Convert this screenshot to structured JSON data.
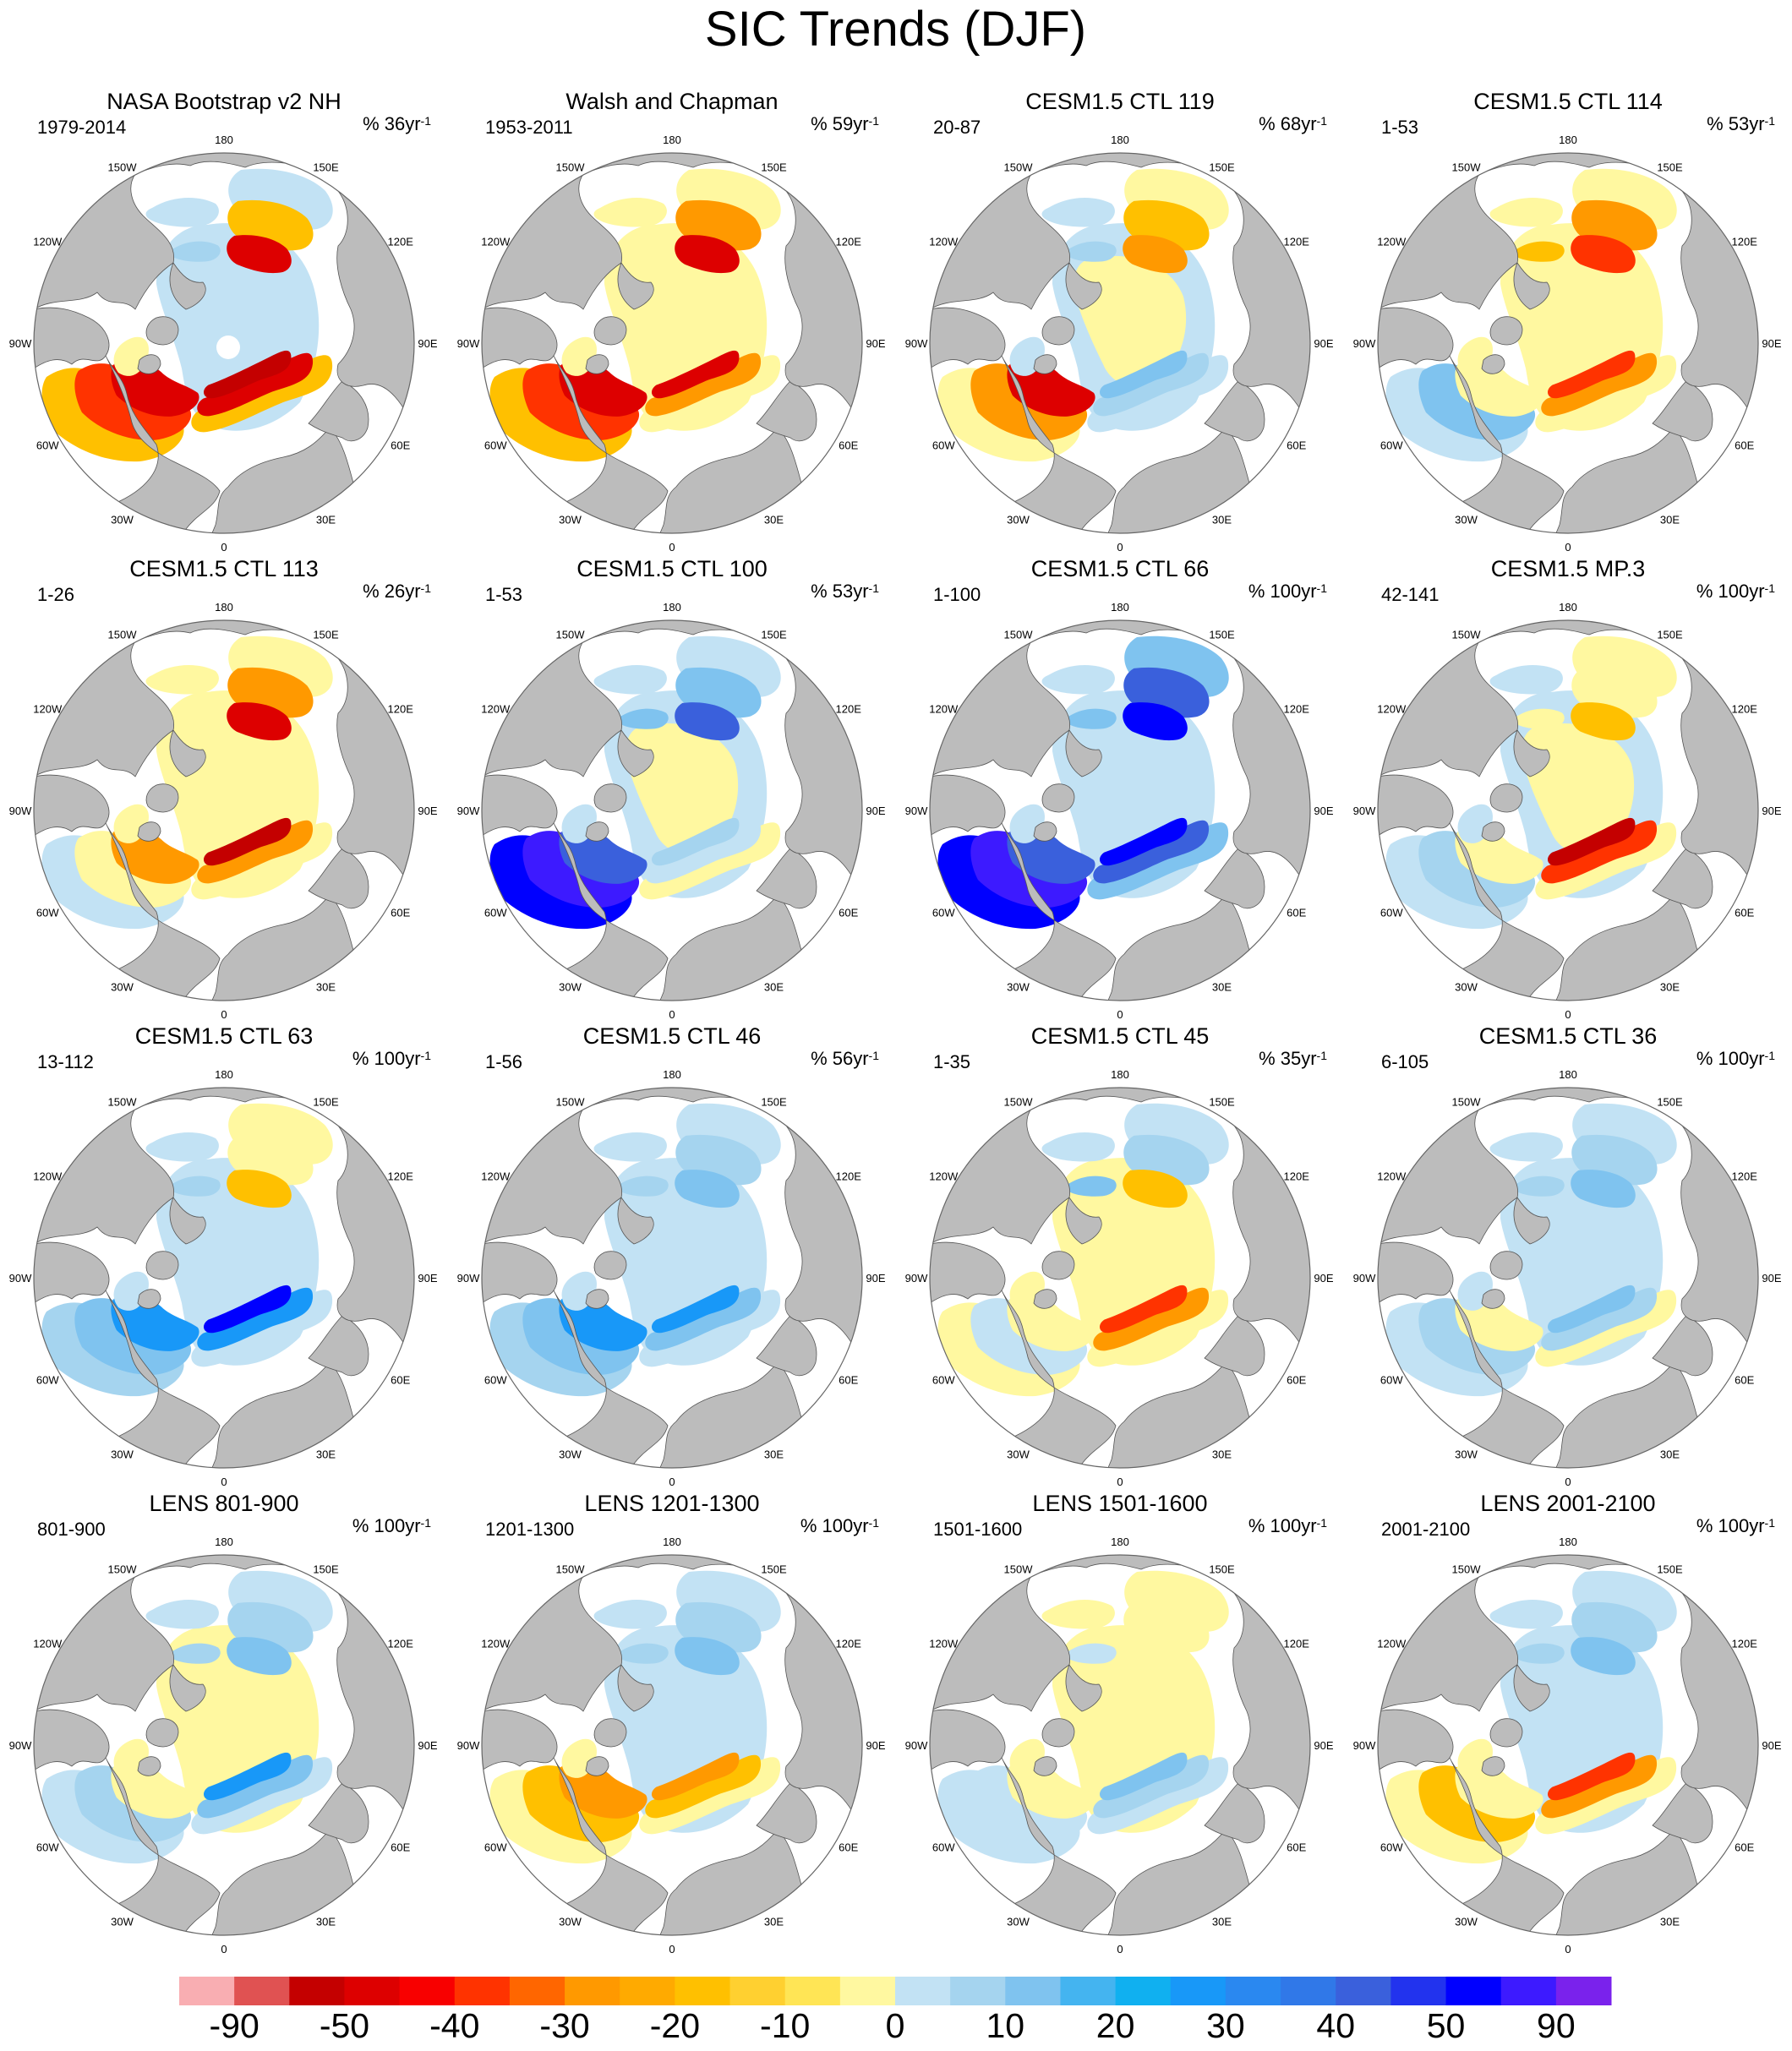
{
  "title": "SIC Trends (DJF)",
  "map_labels": {
    "longitudes": [
      "180",
      "150E",
      "120E",
      "90E",
      "60E",
      "30E",
      "0",
      "30W",
      "60W",
      "90W",
      "120W",
      "150W"
    ]
  },
  "colors": {
    "land": "#bcbcbc",
    "ocean": "#ffffff",
    "outline": "#555555"
  },
  "panels": [
    {
      "title": "NASA Bootstrap v2 NH",
      "period": "1979-2014",
      "units": "% 36yr",
      "units_exp": "-1",
      "pattern": "obs1"
    },
    {
      "title": "Walsh and Chapman",
      "period": "1953-2011",
      "units": "% 59yr",
      "units_exp": "-1",
      "pattern": "obs2"
    },
    {
      "title": "CESM1.5 CTL 119",
      "period": "20-87",
      "units": "% 68yr",
      "units_exp": "-1",
      "pattern": "mixw"
    },
    {
      "title": "CESM1.5 CTL 114",
      "period": "1-53",
      "units": "% 53yr",
      "units_exp": "-1",
      "pattern": "warm"
    },
    {
      "title": "CESM1.5 CTL 113",
      "period": "1-26",
      "units": "% 26yr",
      "units_exp": "-1",
      "pattern": "warm2"
    },
    {
      "title": "CESM1.5 CTL 100",
      "period": "1-53",
      "units": "% 53yr",
      "units_exp": "-1",
      "pattern": "cool"
    },
    {
      "title": "CESM1.5 CTL 66",
      "period": "1-100",
      "units": "% 100yr",
      "units_exp": "-1",
      "pattern": "cool2"
    },
    {
      "title": "CESM1.5 MP.3",
      "period": "42-141",
      "units": "% 100yr",
      "units_exp": "-1",
      "pattern": "warm3"
    },
    {
      "title": "CESM1.5 CTL 63",
      "period": "13-112",
      "units": "% 100yr",
      "units_exp": "-1",
      "pattern": "cool3"
    },
    {
      "title": "CESM1.5 CTL 46",
      "period": "1-56",
      "units": "% 56yr",
      "units_exp": "-1",
      "pattern": "cool4"
    },
    {
      "title": "CESM1.5 CTL 45",
      "period": "1-35",
      "units": "% 35yr",
      "units_exp": "-1",
      "pattern": "mixw2"
    },
    {
      "title": "CESM1.5 CTL 36",
      "period": "6-105",
      "units": "% 100yr",
      "units_exp": "-1",
      "pattern": "cool5"
    },
    {
      "title": "LENS 801-900",
      "period": "801-900",
      "units": "% 100yr",
      "units_exp": "-1",
      "pattern": "lens1"
    },
    {
      "title": "LENS 1201-1300",
      "period": "1201-1300",
      "units": "% 100yr",
      "units_exp": "-1",
      "pattern": "lens2"
    },
    {
      "title": "LENS 1501-1600",
      "period": "1501-1600",
      "units": "% 100yr",
      "units_exp": "-1",
      "pattern": "lens3"
    },
    {
      "title": "LENS 2001-2100",
      "period": "2001-2100",
      "units": "% 100yr",
      "units_exp": "-1",
      "pattern": "lens4"
    }
  ],
  "colorbar": {
    "colors": [
      "#f9aeb2",
      "#e05252",
      "#c40000",
      "#dd0000",
      "#f80000",
      "#ff3300",
      "#ff6600",
      "#ff9900",
      "#ffaa00",
      "#ffc000",
      "#ffd030",
      "#ffe555",
      "#fff8a0",
      "#c2e2f4",
      "#a5d4ef",
      "#7fc3ef",
      "#44b4f0",
      "#10b0f0",
      "#1898f8",
      "#2a88f0",
      "#3078e8",
      "#3a60dc",
      "#2233ee",
      "#0000ff",
      "#3d1aff",
      "#7a22ec"
    ],
    "labels": [
      "-90",
      "-50",
      "-40",
      "-30",
      "-20",
      "-10",
      "0",
      "10",
      "20",
      "30",
      "40",
      "50",
      "90"
    ]
  }
}
